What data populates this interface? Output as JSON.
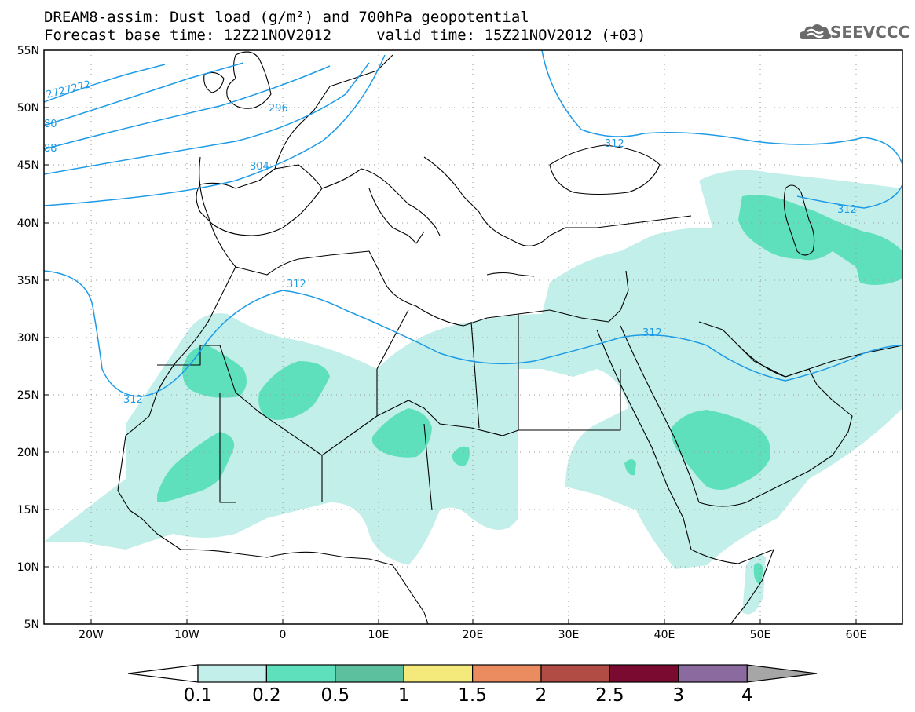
{
  "title": {
    "line1": "DREAM8-assim: Dust load (g/m²) and 700hPa geopotential",
    "line2": "Forecast base time: 12Z21NOV2012     valid time: 15Z21NOV2012 (+03)"
  },
  "logo": {
    "text": "SEEVCCC",
    "icon": "cloud-logo-icon"
  },
  "map": {
    "lat_labels": [
      "55N",
      "50N",
      "45N",
      "40N",
      "35N",
      "30N",
      "25N",
      "20N",
      "15N",
      "10N",
      "5N"
    ],
    "lon_labels": [
      "20W",
      "10W",
      "0",
      "10E",
      "20E",
      "30E",
      "40E",
      "50E",
      "60E"
    ],
    "contour_labels": [
      "2727272",
      "80",
      "88",
      "296",
      "304",
      "312",
      "312",
      "312",
      "312",
      "312"
    ],
    "colors": {
      "contour": "#1e9be6",
      "dust_0_1": "#c2efe9",
      "dust_0_2": "#5ee0bd",
      "dust_0_5": "#5cbf9e",
      "coast": "#000000"
    }
  },
  "colorbar": {
    "labels": [
      "0.1",
      "0.2",
      "0.5",
      "1",
      "1.5",
      "2",
      "2.5",
      "3",
      "4"
    ],
    "colors": [
      "#c2efe9",
      "#5ee0bd",
      "#5cbf9e",
      "#f4ea7c",
      "#ea8b60",
      "#b04c43",
      "#7a0a2f",
      "#8b6aa0",
      "#a6a6a6"
    ]
  }
}
